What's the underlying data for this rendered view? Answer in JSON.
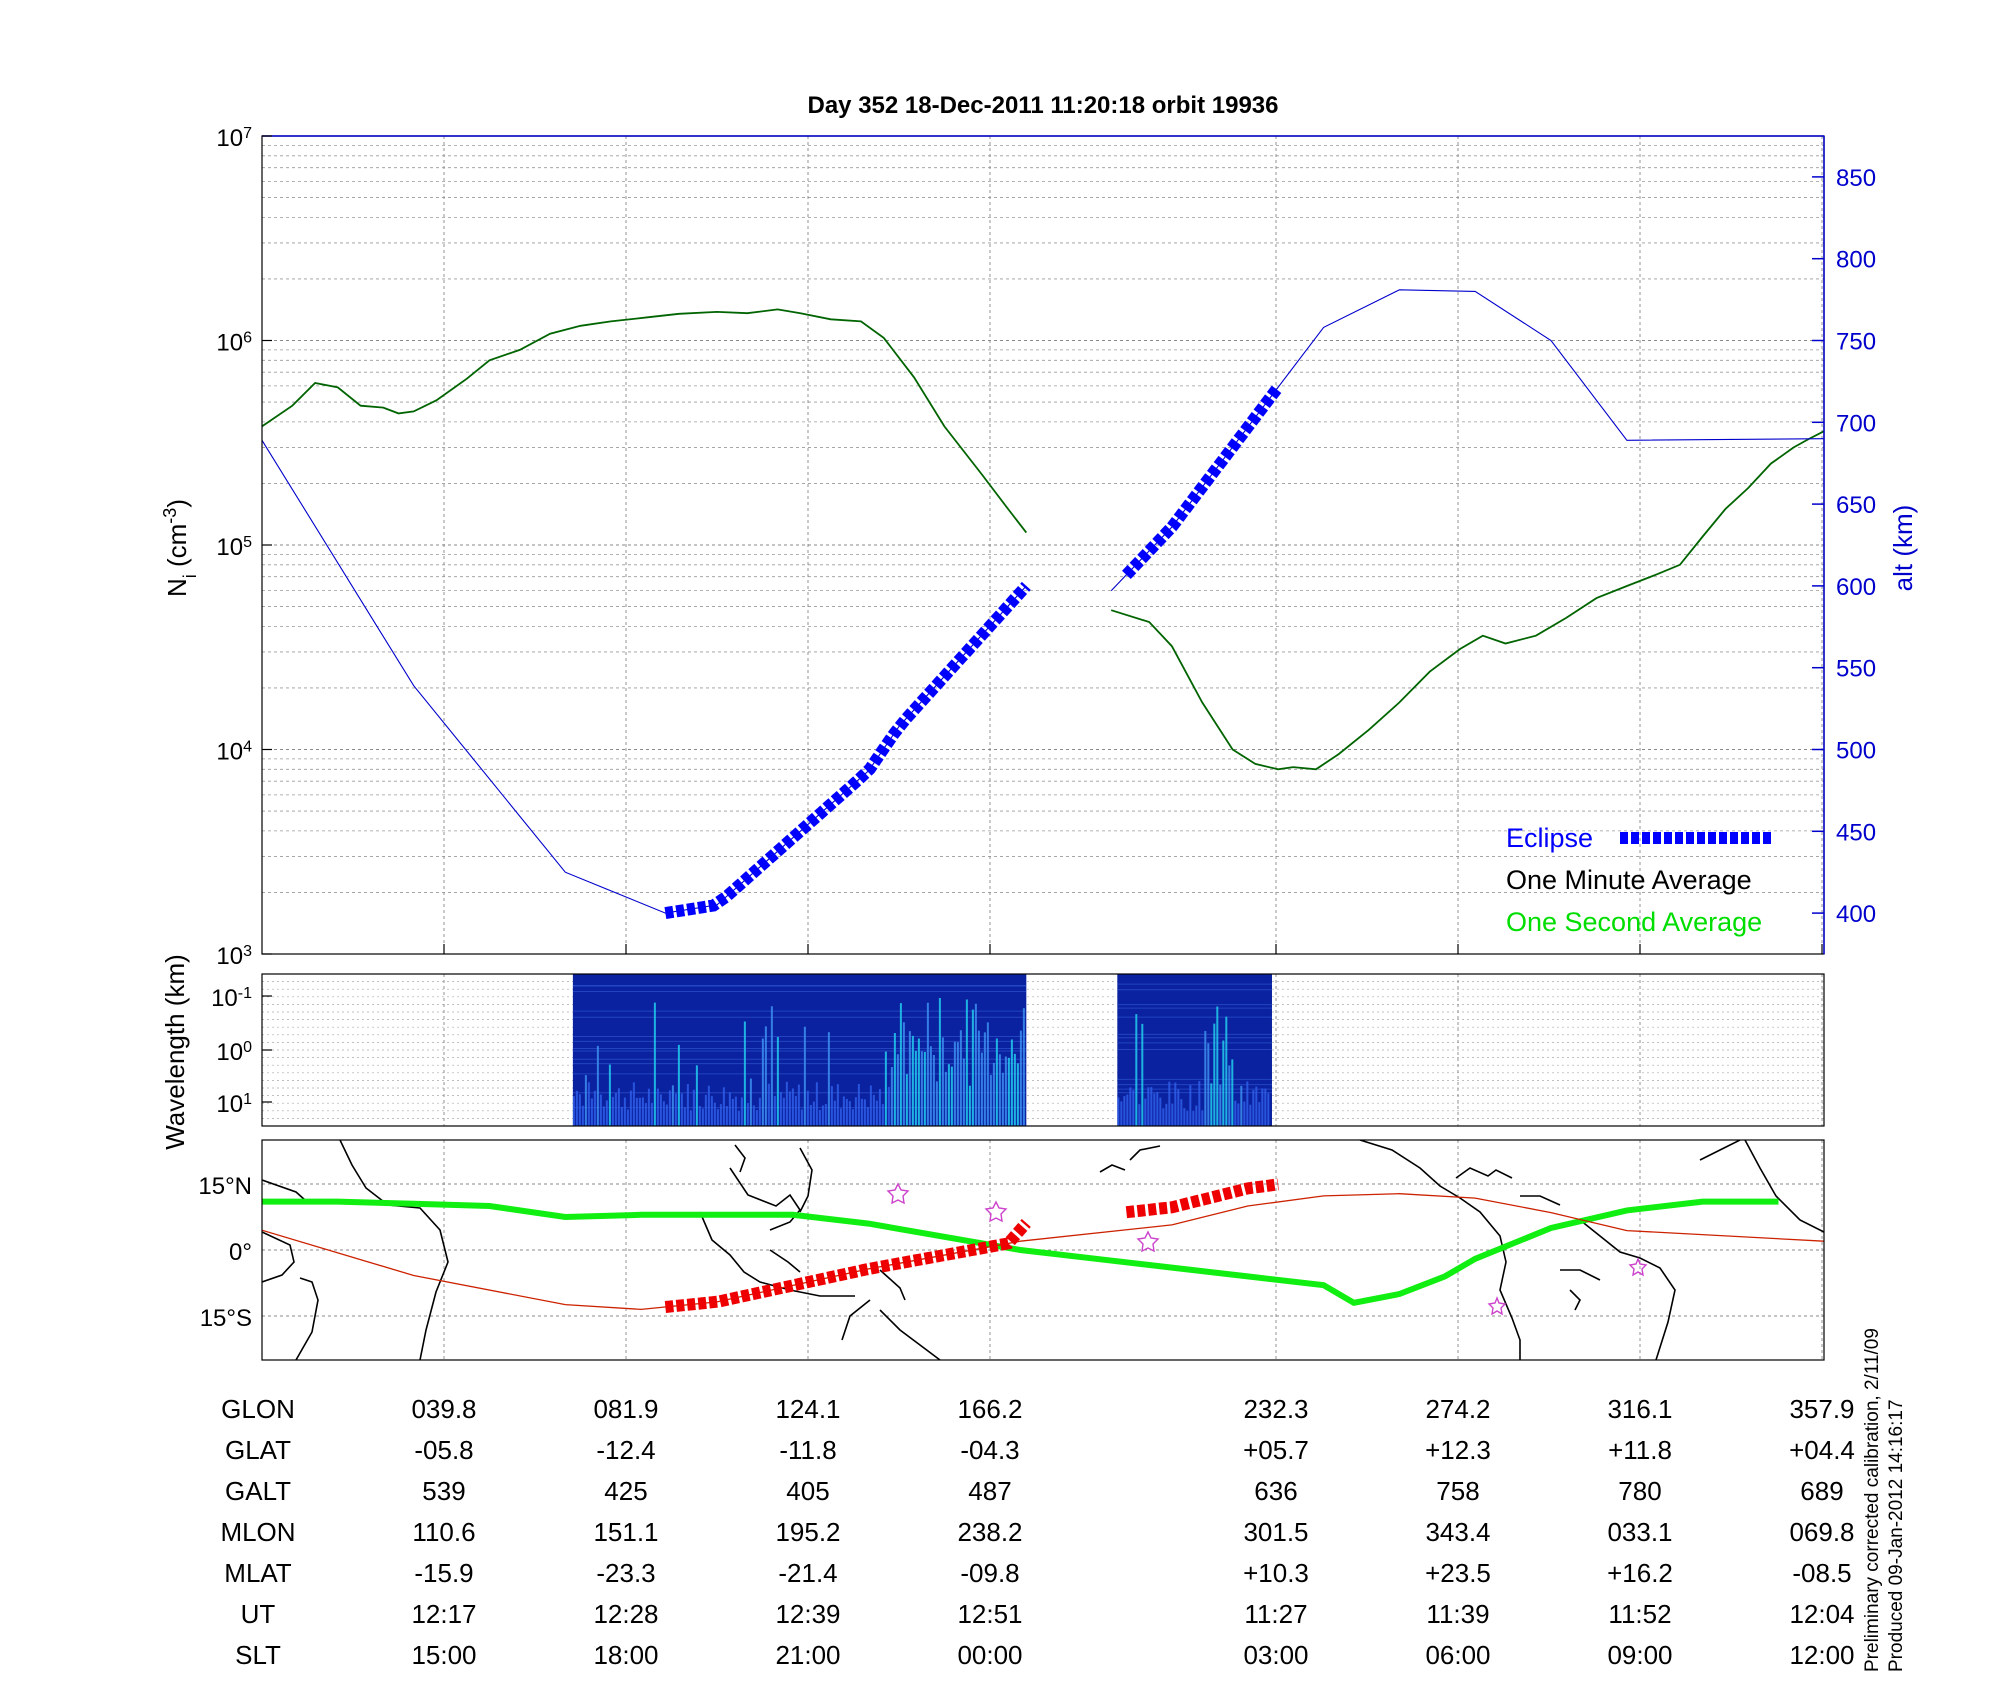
{
  "title": "Day 352  18-Dec-2011 11:20:18   orbit 19936",
  "colors": {
    "density_line": "#006400",
    "altitude_line": "#0000cc",
    "eclipse": "#0000ff",
    "one_minute": "#000000",
    "one_second": "#00dd00",
    "track_green": "#11ee11",
    "track_red": "#cc2200",
    "eclipse_map": "#ee0000",
    "spectrum_bg": "#0a22a0"
  },
  "chart_data": [
    {
      "type": "line",
      "panel": "density",
      "ylabel_left": "N_i (cm^-3)",
      "ylabel_right": "alt (km)",
      "y_scale": "log",
      "ylim_left": [
        1000,
        10000000
      ],
      "ylim_right": [
        375,
        875
      ],
      "y_ticks_left": [
        "10^3",
        "10^4",
        "10^5",
        "10^6",
        "10^7"
      ],
      "y_ticks_right": [
        "400",
        "450",
        "500",
        "550",
        "600",
        "650",
        "700",
        "750",
        "800",
        "850"
      ],
      "grid": true,
      "legend_position": "bottom-right",
      "legend": [
        "Eclipse",
        "One Minute Average",
        "One Second Average"
      ],
      "series": [
        {
          "name": "One Minute Average",
          "axis": "left",
          "segments": [
            [
              [
                0,
                380000
              ],
              [
                0.2,
                480000
              ],
              [
                0.35,
                620000
              ],
              [
                0.5,
                590000
              ],
              [
                0.65,
                480000
              ],
              [
                0.8,
                470000
              ],
              [
                0.9,
                440000
              ],
              [
                1.0,
                450000
              ],
              [
                1.15,
                510000
              ],
              [
                1.35,
                650000
              ],
              [
                1.5,
                800000
              ],
              [
                1.7,
                900000
              ],
              [
                1.9,
                1080000
              ],
              [
                2.1,
                1180000
              ],
              [
                2.3,
                1240000
              ],
              [
                2.55,
                1300000
              ],
              [
                2.75,
                1350000
              ],
              [
                3.0,
                1380000
              ],
              [
                3.2,
                1360000
              ],
              [
                3.4,
                1420000
              ],
              [
                3.55,
                1360000
              ],
              [
                3.75,
                1270000
              ],
              [
                3.95,
                1240000
              ],
              [
                4.1,
                1030000
              ],
              [
                4.3,
                660000
              ],
              [
                4.5,
                380000
              ],
              [
                4.75,
                220000
              ],
              [
                4.92,
                150000
              ],
              [
                5.04,
                115000
              ]
            ],
            [
              [
                5.6,
                48000
              ],
              [
                5.85,
                42000
              ],
              [
                6.0,
                32000
              ],
              [
                6.2,
                17000
              ],
              [
                6.4,
                10000
              ],
              [
                6.55,
                8500
              ],
              [
                6.7,
                8000
              ],
              [
                6.8,
                8200
              ],
              [
                6.95,
                8000
              ],
              [
                7.1,
                9500
              ],
              [
                7.3,
                12500
              ],
              [
                7.5,
                17000
              ],
              [
                7.7,
                24000
              ],
              [
                7.9,
                31000
              ],
              [
                8.05,
                36000
              ],
              [
                8.2,
                33000
              ],
              [
                8.4,
                36000
              ],
              [
                8.6,
                44000
              ],
              [
                8.8,
                55000
              ],
              [
                9.0,
                63000
              ],
              [
                9.2,
                72000
              ],
              [
                9.35,
                80000
              ],
              [
                9.5,
                110000
              ],
              [
                9.65,
                150000
              ],
              [
                9.8,
                190000
              ],
              [
                9.95,
                250000
              ],
              [
                10.1,
                300000
              ],
              [
                10.2,
                330000
              ],
              [
                10.3,
                360000
              ]
            ]
          ]
        },
        {
          "name": "altitude",
          "axis": "right",
          "segments": [
            [
              [
                0,
                689
              ],
              [
                1.0,
                539
              ],
              [
                2.0,
                425
              ],
              [
                2.66,
                400
              ],
              [
                3.0,
                405
              ],
              [
                4.0,
                487
              ],
              [
                4.2,
                514
              ],
              [
                5.04,
                600
              ]
            ],
            [
              [
                5.6,
                597
              ],
              [
                6.0,
                636
              ],
              [
                7.0,
                758
              ],
              [
                7.5,
                781
              ],
              [
                8.0,
                780
              ],
              [
                8.5,
                750
              ],
              [
                9.0,
                689
              ],
              [
                10.3,
                690
              ]
            ]
          ]
        }
      ],
      "eclipse_segments": [
        [
          2.66,
          5.04
        ],
        [
          5.7,
          6.7
        ]
      ]
    },
    {
      "type": "heatmap",
      "panel": "spectrogram",
      "ylabel": "Wavelength (km)",
      "y_ticks": [
        "10^-1",
        "10^0",
        "10^1"
      ],
      "data_blocks": [
        [
          2.05,
          5.04
        ],
        [
          5.64,
          6.66
        ]
      ]
    },
    {
      "type": "line",
      "panel": "map",
      "y_ticks": [
        "15°N",
        "0°",
        "15°S"
      ],
      "ylim": [
        -25,
        25
      ],
      "series": [
        {
          "name": "magnetic equator",
          "points": [
            [
              0,
              11
            ],
            [
              0.5,
              11
            ],
            [
              1.0,
              10.5
            ],
            [
              1.5,
              10
            ],
            [
              2.0,
              7.5
            ],
            [
              2.5,
              8
            ],
            [
              3.0,
              8
            ],
            [
              3.5,
              8
            ],
            [
              4.0,
              6
            ],
            [
              4.5,
              3
            ],
            [
              5.0,
              0
            ],
            [
              5.5,
              -2
            ],
            [
              6.0,
              -4
            ],
            [
              6.5,
              -6
            ],
            [
              7.0,
              -8
            ],
            [
              7.2,
              -12
            ],
            [
              7.5,
              -10
            ],
            [
              7.8,
              -6
            ],
            [
              8.0,
              -2
            ],
            [
              8.5,
              5
            ],
            [
              9.0,
              9
            ],
            [
              9.5,
              11
            ],
            [
              10.0,
              11
            ]
          ]
        },
        {
          "name": "orbit track",
          "points": [
            [
              0,
              4.5
            ],
            [
              1.0,
              -5.8
            ],
            [
              2.0,
              -12.4
            ],
            [
              2.5,
              -13.5
            ],
            [
              3.0,
              -11.8
            ],
            [
              4.0,
              -4.3
            ],
            [
              5.0,
              2
            ],
            [
              6.0,
              5.7
            ],
            [
              6.5,
              10
            ],
            [
              7.0,
              12.3
            ],
            [
              7.5,
              12.8
            ],
            [
              8.0,
              11.8
            ],
            [
              8.5,
              8.5
            ],
            [
              9.0,
              4.4
            ],
            [
              10.3,
              2
            ]
          ]
        }
      ],
      "eclipse_segments": [
        [
          2.66,
          5.04
        ],
        [
          5.7,
          6.7
        ]
      ]
    }
  ],
  "table": {
    "rows": [
      {
        "label": "GLON",
        "values": [
          "039.8",
          "081.9",
          "124.1",
          "166.2",
          "232.3",
          "274.2",
          "316.1",
          "357.9"
        ]
      },
      {
        "label": "GLAT",
        "values": [
          "-05.8",
          "-12.4",
          "-11.8",
          "-04.3",
          "+05.7",
          "+12.3",
          "+11.8",
          "+04.4"
        ]
      },
      {
        "label": "GALT",
        "values": [
          "539",
          "425",
          "405",
          "487",
          "636",
          "758",
          "780",
          "689"
        ]
      },
      {
        "label": "MLON",
        "values": [
          "110.6",
          "151.1",
          "195.2",
          "238.2",
          "301.5",
          "343.4",
          "033.1",
          "069.8"
        ]
      },
      {
        "label": "MLAT",
        "values": [
          "-15.9",
          "-23.3",
          "-21.4",
          "-09.8",
          "+10.3",
          "+23.5",
          "+16.2",
          "-08.5"
        ]
      },
      {
        "label": "UT",
        "values": [
          "12:17",
          "12:28",
          "12:39",
          "12:51",
          "11:27",
          "11:39",
          "11:52",
          "12:04"
        ]
      },
      {
        "label": "SLT",
        "values": [
          "15:00",
          "18:00",
          "21:00",
          "00:00",
          "03:00",
          "06:00",
          "09:00",
          "12:00"
        ]
      }
    ]
  },
  "notes": {
    "line1": "Preliminary corrected calibration, 2/11/09",
    "line2": "Produced 09-Jan-2012 14:16:17"
  }
}
